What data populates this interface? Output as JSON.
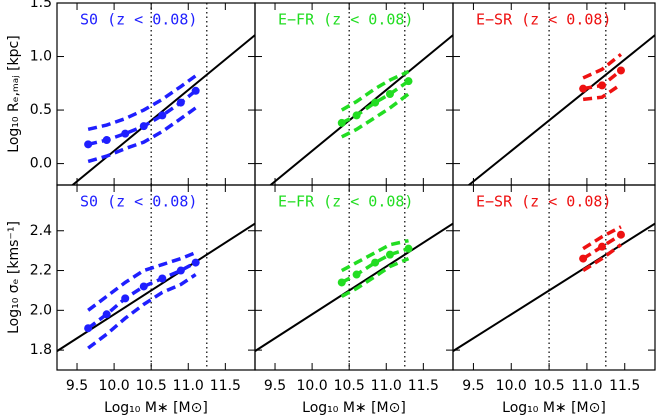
{
  "chart_data": [
    {
      "type": "line",
      "title": "S0 (z < 0.08)",
      "color": "#1f1fff",
      "y_label": "Log₁₀ Rₑ,ₘₐⱼ [kpc]",
      "x": [
        9.65,
        9.9,
        10.15,
        10.4,
        10.65,
        10.9,
        11.1
      ],
      "series": [
        {
          "values": [
            0.18,
            0.22,
            0.28,
            0.35,
            0.45,
            0.57,
            0.68
          ]
        },
        {
          "values": [
            0.32,
            0.36,
            0.42,
            0.5,
            0.6,
            0.72,
            0.82
          ]
        },
        {
          "values": [
            0.02,
            0.07,
            0.14,
            0.2,
            0.3,
            0.42,
            0.52
          ]
        }
      ],
      "fit_line": {
        "x": [
          9.23,
          11.9
        ],
        "y": [
          -0.32,
          1.2
        ]
      },
      "vlines": [
        10.5,
        11.25
      ],
      "xlim": [
        9.23,
        11.9
      ],
      "ylim": [
        -0.2,
        1.5
      ],
      "xticks": [
        9.5,
        {
          "value": 10,
          "label": "10.0"
        },
        10.5,
        {
          "value": 11,
          "label": "11.0"
        },
        11.5
      ],
      "yticks": [
        {
          "value": 0,
          "label": "0.0"
        },
        0.5,
        {
          "value": 1,
          "label": "1.0"
        },
        1.5
      ]
    },
    {
      "type": "line",
      "title": "E−FR (z < 0.08)",
      "color": "#22dd22",
      "x": [
        10.4,
        10.6,
        10.85,
        11.05,
        11.3
      ],
      "series": [
        {
          "values": [
            0.38,
            0.45,
            0.57,
            0.65,
            0.77
          ]
        },
        {
          "values": [
            0.5,
            0.58,
            0.7,
            0.78,
            0.86
          ]
        },
        {
          "values": [
            0.25,
            0.32,
            0.43,
            0.52,
            0.65
          ]
        }
      ],
      "fit_line": {
        "x": [
          9.23,
          11.9
        ],
        "y": [
          -0.32,
          1.2
        ]
      },
      "vlines": [
        10.5,
        11.25
      ],
      "xlim": [
        9.23,
        11.9
      ],
      "ylim": [
        -0.2,
        1.5
      ],
      "xticks": [
        9.5,
        {
          "value": 10,
          "label": "10.0"
        },
        10.5,
        {
          "value": 11,
          "label": "11.0"
        },
        11.5
      ],
      "yticks": [
        {
          "value": 0,
          "label": "0.0"
        },
        0.5,
        {
          "value": 1,
          "label": "1.0"
        },
        1.5
      ]
    },
    {
      "type": "line",
      "title": "E−SR (z < 0.08)",
      "color": "#ee1111",
      "x": [
        10.95,
        11.2,
        11.45
      ],
      "series": [
        {
          "values": [
            0.7,
            0.73,
            0.87
          ]
        },
        {
          "values": [
            0.8,
            0.88,
            1.02
          ]
        },
        {
          "values": [
            0.6,
            0.62,
            0.74
          ]
        }
      ],
      "fit_line": {
        "x": [
          9.23,
          11.9
        ],
        "y": [
          -0.32,
          1.2
        ]
      },
      "vlines": [
        10.5,
        11.25
      ],
      "xlim": [
        9.23,
        11.9
      ],
      "ylim": [
        -0.2,
        1.5
      ],
      "xticks": [
        9.5,
        {
          "value": 10,
          "label": "10.0"
        },
        10.5,
        {
          "value": 11,
          "label": "11.0"
        },
        11.5
      ],
      "yticks": [
        {
          "value": 0,
          "label": "0.0"
        },
        0.5,
        {
          "value": 1,
          "label": "1.0"
        },
        1.5
      ]
    },
    {
      "type": "line",
      "title": "S0 (z < 0.08)",
      "color": "#1f1fff",
      "y_label": "Log₁₀ σₑ [kms⁻¹]",
      "x_label": "Log₁₀ M∗ [M⊙]",
      "x": [
        9.65,
        9.9,
        10.15,
        10.4,
        10.65,
        10.9,
        11.1
      ],
      "series": [
        {
          "values": [
            1.91,
            1.98,
            2.06,
            2.12,
            2.16,
            2.2,
            2.24
          ]
        },
        {
          "values": [
            2.0,
            2.07,
            2.14,
            2.2,
            2.23,
            2.26,
            2.29
          ]
        },
        {
          "values": [
            1.81,
            1.88,
            1.96,
            2.03,
            2.09,
            2.13,
            2.18
          ]
        }
      ],
      "fit_line": {
        "x": [
          9.23,
          11.9
        ],
        "y": [
          1.795,
          2.436
        ]
      },
      "vlines": [
        10.5,
        11.25
      ],
      "xlim": [
        9.23,
        11.9
      ],
      "ylim": [
        1.7,
        2.63
      ],
      "xticks": [
        9.5,
        {
          "value": 10,
          "label": "10.0"
        },
        10.5,
        {
          "value": 11,
          "label": "11.0"
        },
        11.5
      ],
      "yticks": [
        1.8,
        {
          "value": 2,
          "label": "2.0"
        },
        2.2,
        2.4
      ]
    },
    {
      "type": "line",
      "title": "E−FR (z < 0.08)",
      "color": "#22dd22",
      "x_label": "Log₁₀ M∗ [M⊙]",
      "x": [
        10.4,
        10.6,
        10.85,
        11.05,
        11.3
      ],
      "series": [
        {
          "values": [
            2.14,
            2.18,
            2.24,
            2.28,
            2.31
          ]
        },
        {
          "values": [
            2.2,
            2.24,
            2.29,
            2.33,
            2.35
          ]
        },
        {
          "values": [
            2.07,
            2.11,
            2.17,
            2.22,
            2.26
          ]
        }
      ],
      "fit_line": {
        "x": [
          9.23,
          11.9
        ],
        "y": [
          1.795,
          2.436
        ]
      },
      "vlines": [
        10.5,
        11.25
      ],
      "xlim": [
        9.23,
        11.9
      ],
      "ylim": [
        1.7,
        2.63
      ],
      "xticks": [
        9.5,
        {
          "value": 10,
          "label": "10.0"
        },
        10.5,
        {
          "value": 11,
          "label": "11.0"
        },
        11.5
      ],
      "yticks": [
        1.8,
        {
          "value": 2,
          "label": "2.0"
        },
        2.2,
        2.4
      ]
    },
    {
      "type": "line",
      "title": "E−SR (z < 0.08)",
      "color": "#ee1111",
      "x_label": "Log₁₀ M∗ [M⊙]",
      "x": [
        10.95,
        11.2,
        11.45
      ],
      "series": [
        {
          "values": [
            2.26,
            2.32,
            2.38
          ]
        },
        {
          "values": [
            2.31,
            2.37,
            2.42
          ]
        },
        {
          "values": [
            2.2,
            2.26,
            2.33
          ]
        }
      ],
      "fit_line": {
        "x": [
          9.23,
          11.9
        ],
        "y": [
          1.795,
          2.436
        ]
      },
      "vlines": [
        10.5,
        11.25
      ],
      "xlim": [
        9.23,
        11.9
      ],
      "ylim": [
        1.7,
        2.63
      ],
      "xticks": [
        9.5,
        {
          "value": 10,
          "label": "10.0"
        },
        10.5,
        {
          "value": 11,
          "label": "11.0"
        },
        11.5
      ],
      "yticks": [
        1.8,
        {
          "value": 2,
          "label": "2.0"
        },
        2.2,
        2.4
      ]
    }
  ]
}
